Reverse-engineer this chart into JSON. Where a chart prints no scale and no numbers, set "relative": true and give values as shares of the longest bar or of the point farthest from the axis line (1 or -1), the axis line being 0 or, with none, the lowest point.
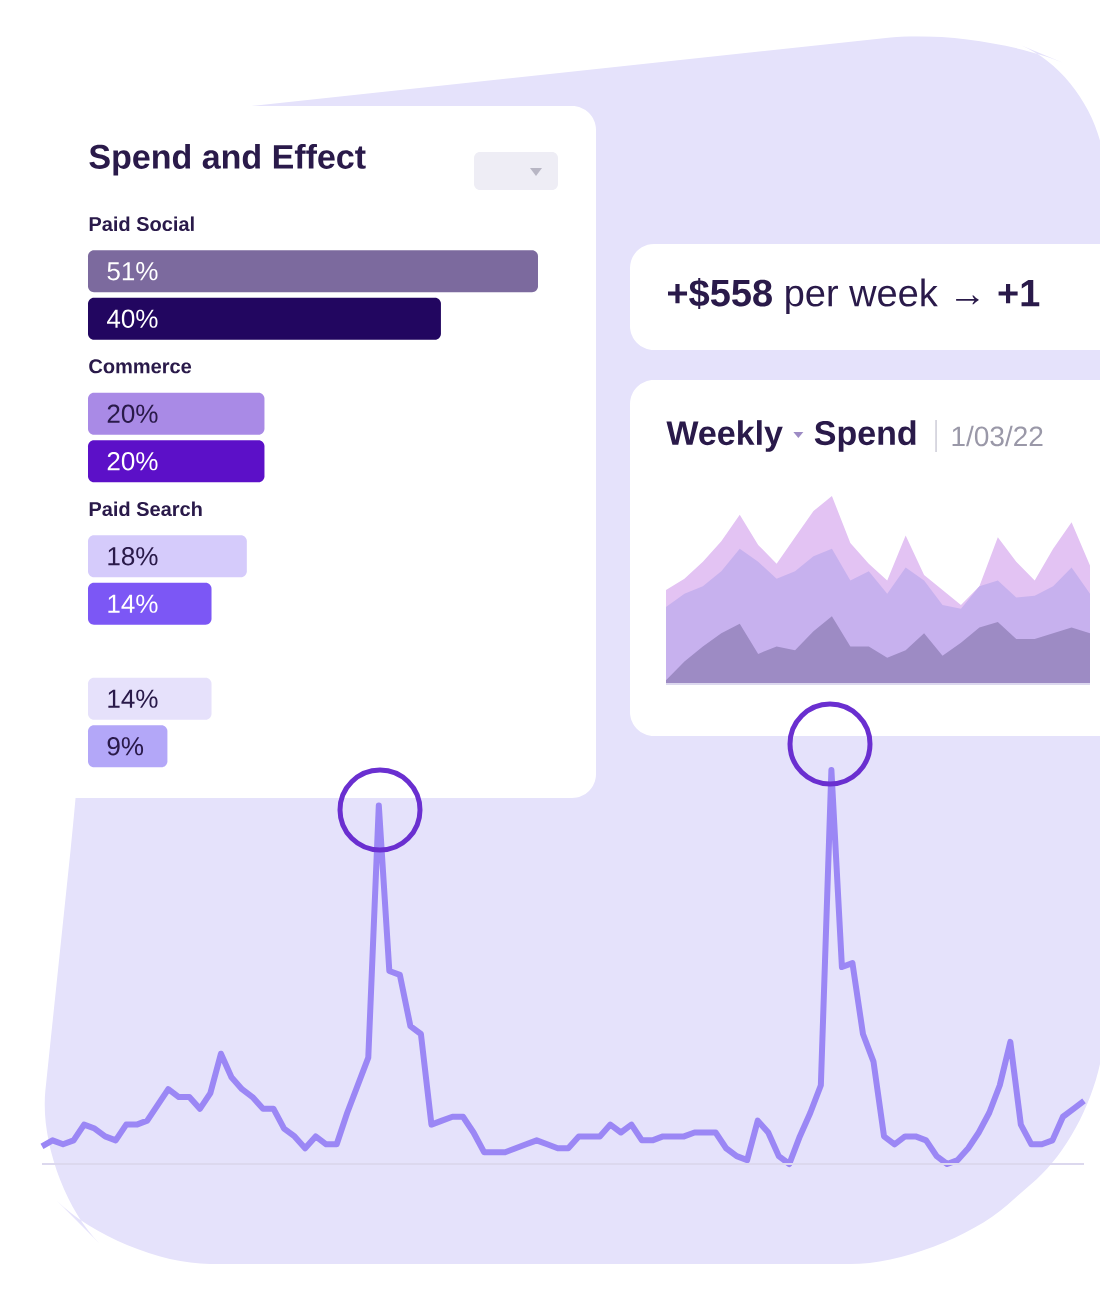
{
  "chart_data": [
    {
      "type": "bar",
      "orientation": "horizontal",
      "title": "Spend and Effect",
      "categories": [
        "Paid Social",
        "Commerce",
        "Paid Search",
        null
      ],
      "series": [
        {
          "values": [
            51,
            20,
            18,
            14
          ],
          "value_labels": [
            "51%",
            "20%",
            "18%",
            "14%"
          ],
          "colors": [
            "#7c6a9e",
            "#a98ae6",
            "#d5cbfb",
            "#e6e1fb"
          ]
        },
        {
          "values": [
            40,
            20,
            14,
            9
          ],
          "value_labels": [
            "40%",
            "20%",
            "14%",
            "9%"
          ],
          "colors": [
            "#220660",
            "#5c10c8",
            "#7c57f5",
            "#b3a7f8"
          ]
        }
      ]
    },
    {
      "type": "other",
      "title": "**+$558** per week → **+1**"
    },
    {
      "type": "area",
      "relative": true,
      "title": "Weekly",
      "subtitle": "Spend",
      "annotations": [
        "1/03/22"
      ],
      "categories": [
        null,
        null,
        null,
        null,
        null,
        null,
        null,
        null,
        null,
        null,
        null,
        null,
        null,
        null,
        null,
        null,
        null,
        null,
        null,
        null,
        null,
        null,
        null,
        null
      ],
      "series": [
        {
          "color": "#e3c3f3",
          "values": [
            0.5,
            0.56,
            0.65,
            0.76,
            0.9,
            0.74,
            0.64,
            0.78,
            0.92,
            1,
            0.75,
            0.64,
            0.55,
            0.79,
            0.58,
            0.5,
            0.42,
            0.52,
            0.78,
            0.65,
            0.55,
            0.72,
            0.86,
            0.63
          ]
        },
        {
          "color": "#c7b1ee",
          "values": [
            0.41,
            0.48,
            0.52,
            0.6,
            0.72,
            0.65,
            0.56,
            0.6,
            0.68,
            0.72,
            0.55,
            0.6,
            0.48,
            0.62,
            0.55,
            0.42,
            0.4,
            0.52,
            0.55,
            0.46,
            0.47,
            0.52,
            0.62,
            0.48
          ]
        },
        {
          "color": "#9d8bc4",
          "values": [
            0.02,
            0.12,
            0.2,
            0.27,
            0.32,
            0.16,
            0.2,
            0.18,
            0.28,
            0.36,
            0.2,
            0.2,
            0.14,
            0.18,
            0.27,
            0.15,
            0.22,
            0.3,
            0.33,
            0.24,
            0.24,
            0.27,
            0.3,
            0.27
          ]
        }
      ]
    },
    {
      "type": "line",
      "relative": true,
      "color": "#9b87f5",
      "categories": [
        null,
        null,
        null,
        null,
        null,
        null,
        null,
        null,
        null,
        null,
        null,
        null,
        null,
        null,
        null,
        null,
        null,
        null,
        null,
        null,
        null,
        null,
        null,
        null,
        null,
        null,
        null,
        null,
        null,
        null,
        null,
        null,
        null,
        null,
        null,
        null,
        null,
        null,
        null,
        null,
        null,
        null,
        null,
        null,
        null,
        null,
        null,
        null,
        null,
        null,
        null,
        null,
        null,
        null,
        null,
        null,
        null,
        null,
        null,
        null,
        null,
        null,
        null,
        null,
        null,
        null,
        null,
        null,
        null,
        null,
        null,
        null,
        null,
        null,
        null,
        null,
        null,
        null,
        null,
        null,
        null,
        null,
        null,
        null,
        null,
        null,
        null,
        null,
        null,
        null,
        null,
        null,
        null,
        null,
        null,
        null,
        null,
        null,
        null,
        null
      ],
      "values": [
        0.045,
        0.06,
        0.05,
        0.06,
        0.1,
        0.09,
        0.07,
        0.06,
        0.1,
        0.1,
        0.11,
        0.15,
        0.19,
        0.17,
        0.17,
        0.14,
        0.18,
        0.28,
        0.22,
        0.19,
        0.17,
        0.14,
        0.14,
        0.09,
        0.07,
        0.04,
        0.07,
        0.05,
        0.05,
        0.13,
        0.2,
        0.27,
        0.91,
        0.49,
        0.48,
        0.35,
        0.33,
        0.1,
        0.11,
        0.12,
        0.12,
        0.08,
        0.03,
        0.03,
        0.03,
        0.04,
        0.05,
        0.06,
        0.05,
        0.04,
        0.04,
        0.07,
        0.07,
        0.07,
        0.1,
        0.08,
        0.1,
        0.06,
        0.06,
        0.07,
        0.07,
        0.07,
        0.08,
        0.08,
        0.08,
        0.04,
        0.02,
        0.01,
        0.11,
        0.08,
        0.02,
        0,
        0.07,
        0.13,
        0.2,
        1,
        0.5,
        0.51,
        0.33,
        0.26,
        0.07,
        0.05,
        0.07,
        0.07,
        0.06,
        0.02,
        0,
        0.01,
        0.04,
        0.08,
        0.13,
        0.2,
        0.31,
        0.1,
        0.05,
        0.05,
        0.06,
        0.12,
        0.14,
        0.16
      ]
    }
  ]
}
